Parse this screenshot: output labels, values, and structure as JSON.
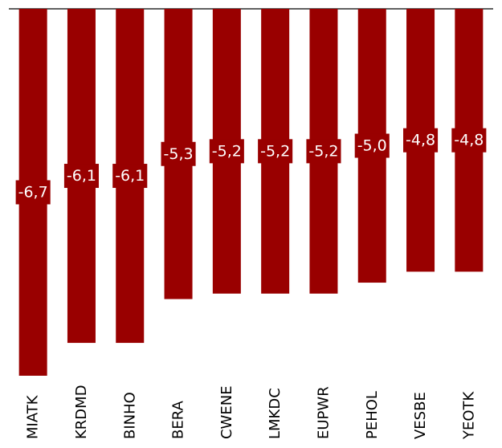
{
  "chart_data": {
    "type": "bar",
    "orientation": "vertical",
    "categories": [
      "MIATK",
      "KRDMD",
      "BINHO",
      "BERA",
      "CWENE",
      "LMKDC",
      "EUPWR",
      "PEHOL",
      "VESBE",
      "YEOTK"
    ],
    "values": [
      -6.7,
      -6.1,
      -6.1,
      -5.3,
      -5.2,
      -5.2,
      -5.2,
      -5.0,
      -4.8,
      -4.8
    ],
    "value_labels": [
      "-6,7",
      "-6,1",
      "-6,1",
      "-5,3",
      "-5,2",
      "-5,2",
      "-5,2",
      "-5,0",
      "-4,8",
      "-4,8"
    ],
    "title": "",
    "xlabel": "",
    "ylabel": "",
    "ylim": [
      -6.7,
      0
    ],
    "grid": false,
    "legend": "none",
    "bar_color": "#990000",
    "label_bg_color": "#990000",
    "label_text_color": "#ffffff",
    "baseline_color": "#000000"
  }
}
